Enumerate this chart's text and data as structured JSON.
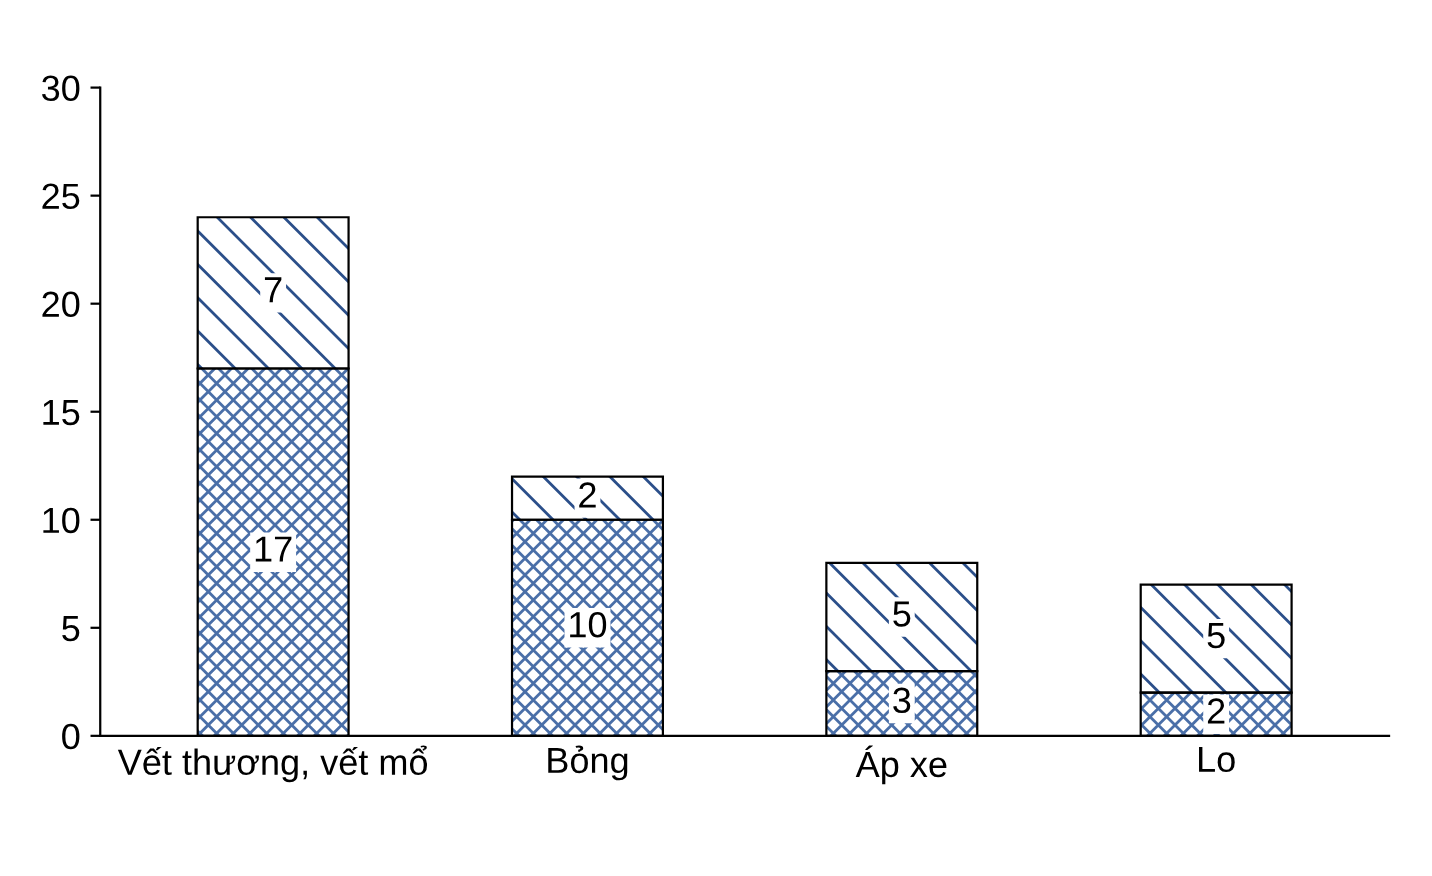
{
  "chart_data": {
    "type": "bar",
    "stacked": true,
    "categories": [
      "Vết thương, vết mổ",
      "Bỏng",
      "Áp xe",
      "Lo"
    ],
    "series": [
      {
        "color": "#4a6fa8",
        "values": [
          17,
          10,
          3,
          2
        ]
      },
      {
        "color": "#2b4f8a",
        "values": [
          7,
          2,
          5,
          5
        ]
      }
    ],
    "ylim": [
      0,
      30
    ],
    "yticks": [
      0,
      5,
      10,
      15,
      20,
      25,
      30
    ],
    "grid": false,
    "data_labels": true
  }
}
